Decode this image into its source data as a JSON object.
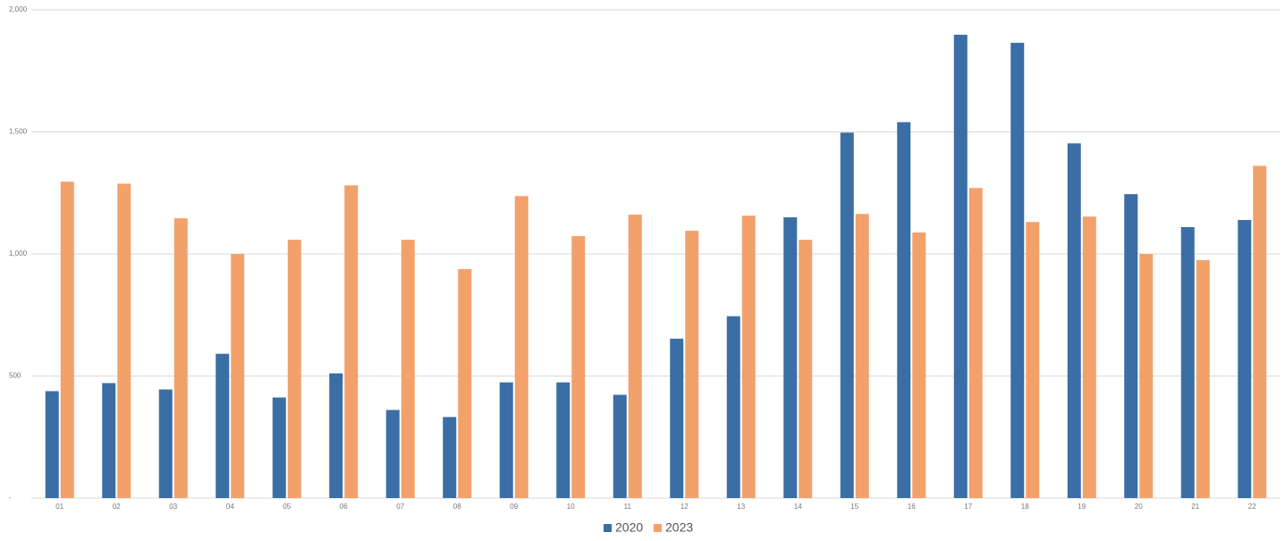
{
  "chart_data": {
    "type": "bar",
    "categories": [
      "01",
      "02",
      "03",
      "04",
      "05",
      "06",
      "07",
      "08",
      "09",
      "10",
      "11",
      "12",
      "13",
      "14",
      "15",
      "16",
      "17",
      "18",
      "19",
      "20",
      "21",
      "22"
    ],
    "series": [
      {
        "name": "2020",
        "color": "#3a6ea5",
        "values": [
          438,
          471,
          445,
          591,
          412,
          511,
          361,
          332,
          474,
          474,
          423,
          653,
          745,
          1150,
          1497,
          1540,
          1898,
          1865,
          1453,
          1245,
          1110,
          1139
        ]
      },
      {
        "name": "2023",
        "color": "#f2a16b",
        "values": [
          1296,
          1288,
          1146,
          1000,
          1058,
          1281,
          1058,
          938,
          1237,
          1073,
          1161,
          1095,
          1157,
          1058,
          1164,
          1088,
          1270,
          1131,
          1153,
          1000,
          975,
          1361
        ]
      }
    ],
    "ylim": [
      0,
      2000
    ],
    "yticks": [
      {
        "value": 0,
        "label": "-"
      },
      500,
      {
        "value": 1000,
        "label": "1,000"
      },
      {
        "value": 1500,
        "label": "1,500"
      },
      {
        "value": 2000,
        "label": "2,000"
      }
    ],
    "grid": true
  }
}
